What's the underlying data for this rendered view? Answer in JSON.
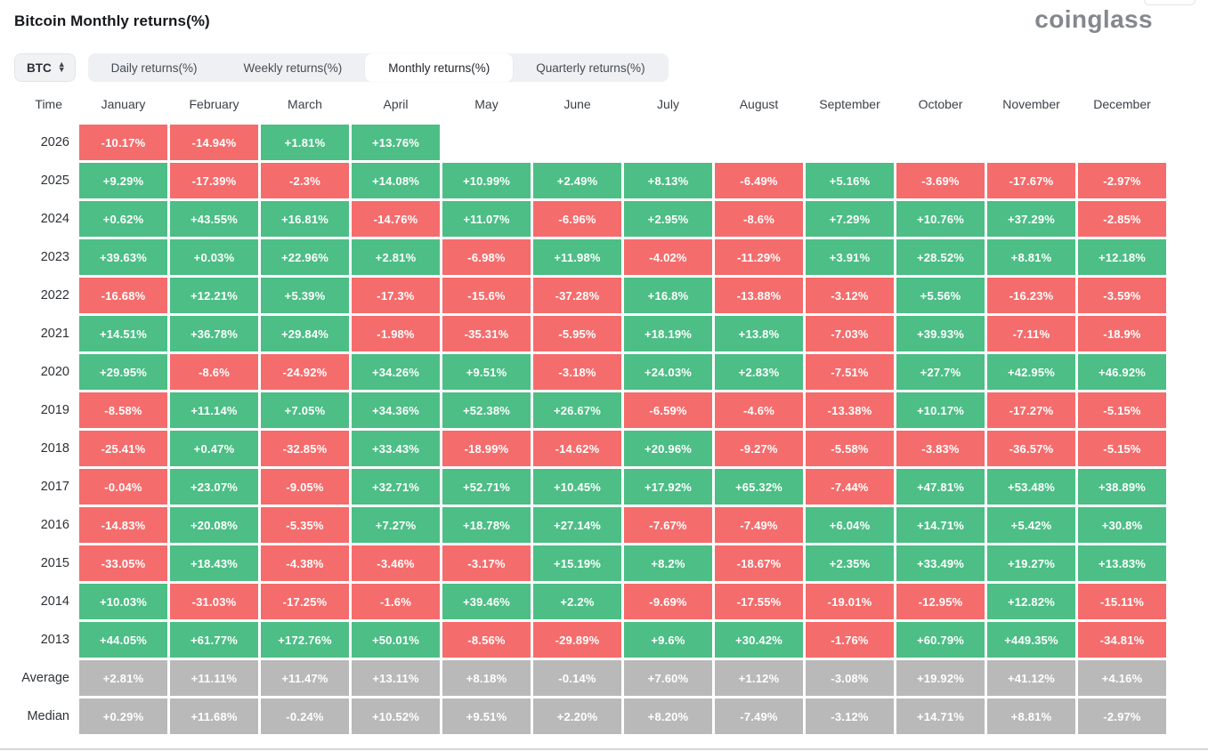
{
  "header": {
    "title": "Bitcoin Monthly returns(%)",
    "logo_text": "coinglass"
  },
  "controls": {
    "symbol_select": {
      "value": "BTC",
      "icon": "updown-chevron-icon"
    },
    "tabs": [
      {
        "label": "Daily returns(%)",
        "active": false
      },
      {
        "label": "Weekly returns(%)",
        "active": false
      },
      {
        "label": "Monthly returns(%)",
        "active": true
      },
      {
        "label": "Quarterly returns(%)",
        "active": false
      }
    ]
  },
  "table": {
    "time_header": "Time",
    "months": [
      "January",
      "February",
      "March",
      "April",
      "May",
      "June",
      "July",
      "August",
      "September",
      "October",
      "November",
      "December"
    ],
    "rows": [
      {
        "label": "2026",
        "type": "year",
        "values": [
          "-10.17%",
          "-14.94%",
          "+1.81%",
          "+13.76%",
          "",
          "",
          "",
          "",
          "",
          "",
          "",
          ""
        ]
      },
      {
        "label": "2025",
        "type": "year",
        "values": [
          "+9.29%",
          "-17.39%",
          "-2.3%",
          "+14.08%",
          "+10.99%",
          "+2.49%",
          "+8.13%",
          "-6.49%",
          "+5.16%",
          "-3.69%",
          "-17.67%",
          "-2.97%"
        ]
      },
      {
        "label": "2024",
        "type": "year",
        "values": [
          "+0.62%",
          "+43.55%",
          "+16.81%",
          "-14.76%",
          "+11.07%",
          "-6.96%",
          "+2.95%",
          "-8.6%",
          "+7.29%",
          "+10.76%",
          "+37.29%",
          "-2.85%"
        ]
      },
      {
        "label": "2023",
        "type": "year",
        "values": [
          "+39.63%",
          "+0.03%",
          "+22.96%",
          "+2.81%",
          "-6.98%",
          "+11.98%",
          "-4.02%",
          "-11.29%",
          "+3.91%",
          "+28.52%",
          "+8.81%",
          "+12.18%"
        ]
      },
      {
        "label": "2022",
        "type": "year",
        "values": [
          "-16.68%",
          "+12.21%",
          "+5.39%",
          "-17.3%",
          "-15.6%",
          "-37.28%",
          "+16.8%",
          "-13.88%",
          "-3.12%",
          "+5.56%",
          "-16.23%",
          "-3.59%"
        ]
      },
      {
        "label": "2021",
        "type": "year",
        "values": [
          "+14.51%",
          "+36.78%",
          "+29.84%",
          "-1.98%",
          "-35.31%",
          "-5.95%",
          "+18.19%",
          "+13.8%",
          "-7.03%",
          "+39.93%",
          "-7.11%",
          "-18.9%"
        ]
      },
      {
        "label": "2020",
        "type": "year",
        "values": [
          "+29.95%",
          "-8.6%",
          "-24.92%",
          "+34.26%",
          "+9.51%",
          "-3.18%",
          "+24.03%",
          "+2.83%",
          "-7.51%",
          "+27.7%",
          "+42.95%",
          "+46.92%"
        ]
      },
      {
        "label": "2019",
        "type": "year",
        "values": [
          "-8.58%",
          "+11.14%",
          "+7.05%",
          "+34.36%",
          "+52.38%",
          "+26.67%",
          "-6.59%",
          "-4.6%",
          "-13.38%",
          "+10.17%",
          "-17.27%",
          "-5.15%"
        ]
      },
      {
        "label": "2018",
        "type": "year",
        "values": [
          "-25.41%",
          "+0.47%",
          "-32.85%",
          "+33.43%",
          "-18.99%",
          "-14.62%",
          "+20.96%",
          "-9.27%",
          "-5.58%",
          "-3.83%",
          "-36.57%",
          "-5.15%"
        ]
      },
      {
        "label": "2017",
        "type": "year",
        "values": [
          "-0.04%",
          "+23.07%",
          "-9.05%",
          "+32.71%",
          "+52.71%",
          "+10.45%",
          "+17.92%",
          "+65.32%",
          "-7.44%",
          "+47.81%",
          "+53.48%",
          "+38.89%"
        ]
      },
      {
        "label": "2016",
        "type": "year",
        "values": [
          "-14.83%",
          "+20.08%",
          "-5.35%",
          "+7.27%",
          "+18.78%",
          "+27.14%",
          "-7.67%",
          "-7.49%",
          "+6.04%",
          "+14.71%",
          "+5.42%",
          "+30.8%"
        ]
      },
      {
        "label": "2015",
        "type": "year",
        "values": [
          "-33.05%",
          "+18.43%",
          "-4.38%",
          "-3.46%",
          "-3.17%",
          "+15.19%",
          "+8.2%",
          "-18.67%",
          "+2.35%",
          "+33.49%",
          "+19.27%",
          "+13.83%"
        ]
      },
      {
        "label": "2014",
        "type": "year",
        "values": [
          "+10.03%",
          "-31.03%",
          "-17.25%",
          "-1.6%",
          "+39.46%",
          "+2.2%",
          "-9.69%",
          "-17.55%",
          "-19.01%",
          "-12.95%",
          "+12.82%",
          "-15.11%"
        ]
      },
      {
        "label": "2013",
        "type": "year",
        "values": [
          "+44.05%",
          "+61.77%",
          "+172.76%",
          "+50.01%",
          "-8.56%",
          "-29.89%",
          "+9.6%",
          "+30.42%",
          "-1.76%",
          "+60.79%",
          "+449.35%",
          "-34.81%"
        ]
      },
      {
        "label": "Average",
        "type": "stat",
        "values": [
          "+2.81%",
          "+11.11%",
          "+11.47%",
          "+13.11%",
          "+8.18%",
          "-0.14%",
          "+7.60%",
          "+1.12%",
          "-3.08%",
          "+19.92%",
          "+41.12%",
          "+4.16%"
        ]
      },
      {
        "label": "Median",
        "type": "stat",
        "values": [
          "+0.29%",
          "+11.68%",
          "-0.24%",
          "+10.52%",
          "+9.51%",
          "+2.20%",
          "+8.20%",
          "-7.49%",
          "-3.12%",
          "+14.71%",
          "+8.81%",
          "-2.97%"
        ]
      }
    ]
  },
  "colors": {
    "positive": "#4CBE86",
    "negative": "#F56C6C",
    "neutral": "#B9B9B9"
  }
}
